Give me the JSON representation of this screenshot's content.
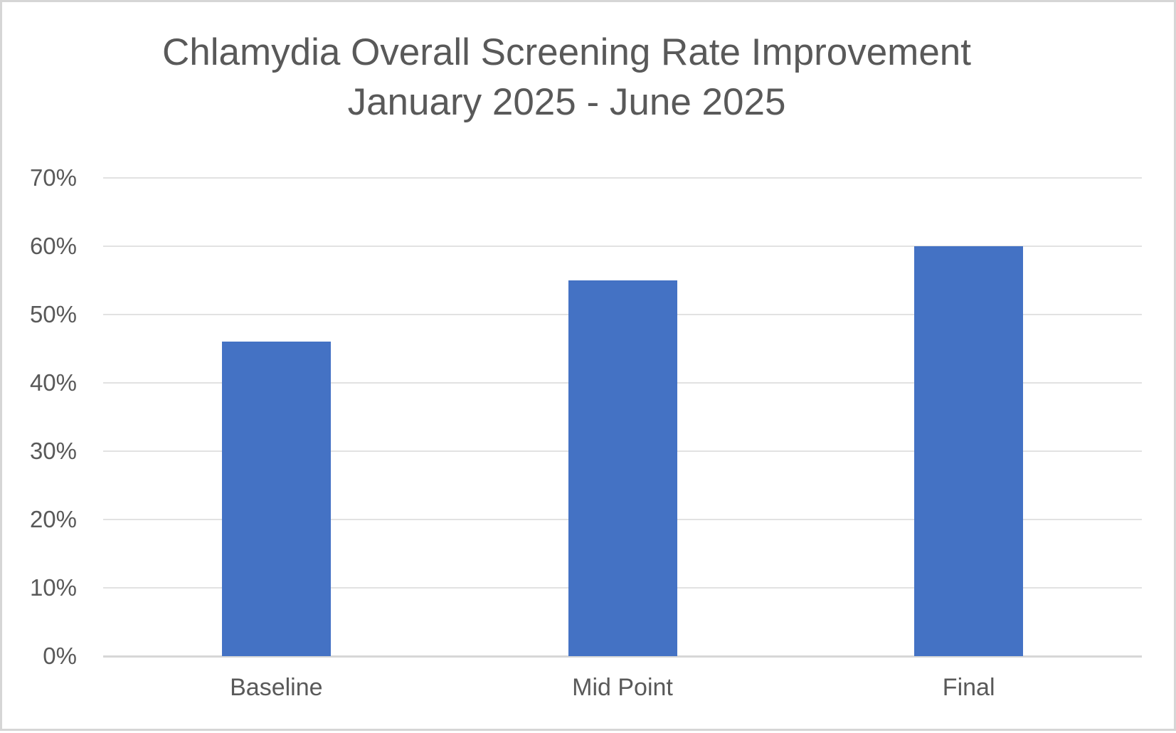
{
  "chart_data": {
    "type": "bar",
    "title": "Chlamydia Overall Screening Rate Improvement",
    "subtitle": "January 2025 - June 2025",
    "categories": [
      "Baseline",
      "Mid Point",
      "Final"
    ],
    "values": [
      46,
      55,
      60
    ],
    "value_format": "percent",
    "xlabel": "",
    "ylabel": "",
    "ylim": [
      0,
      70
    ],
    "ytick_step": 10,
    "yticks": [
      "0%",
      "10%",
      "20%",
      "30%",
      "40%",
      "50%",
      "60%",
      "70%"
    ],
    "grid": true,
    "legend": false
  },
  "colors": {
    "bar": "#4472C4",
    "title_text": "#595959",
    "axis_text": "#595959",
    "gridline": "#E2E2E2",
    "axis_line": "#D7D7D7",
    "frame_border": "#D6D6D6",
    "background": "#FFFFFF"
  }
}
